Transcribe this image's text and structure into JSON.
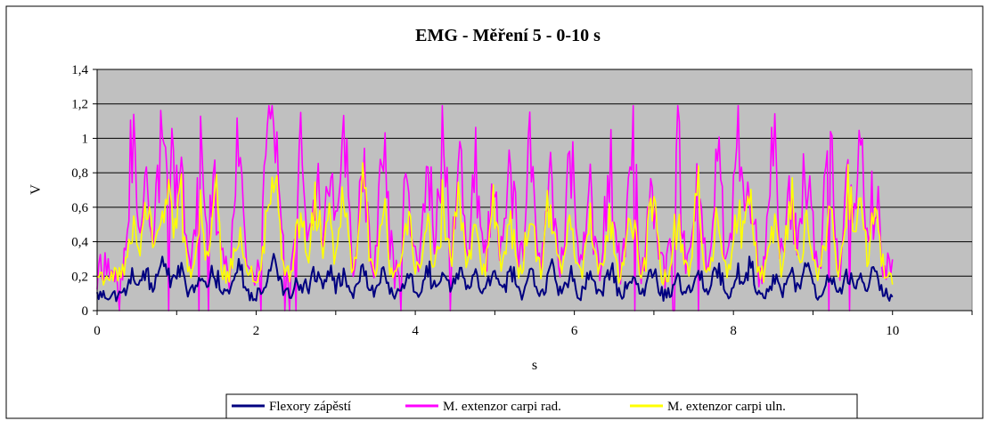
{
  "chart_data": {
    "type": "line",
    "title": "EMG - Měření 5 - 0-10 s",
    "xlabel": "s",
    "ylabel": "V",
    "xlim": [
      0,
      11
    ],
    "ylim": [
      0,
      1.4
    ],
    "x_ticks": [
      "0",
      "2",
      "4",
      "6",
      "8",
      "10"
    ],
    "y_ticks": [
      "0",
      "0,2",
      "0,4",
      "0,6",
      "0,8",
      "1",
      "1,2",
      "1,4"
    ],
    "grid": "horizontal",
    "plot_background": "#c0c0c0",
    "legend_position": "bottom",
    "sampling": {
      "x_start": 0,
      "x_end": 10,
      "step": 0.02
    },
    "burst_times": [
      0.45,
      0.62,
      0.8,
      0.9,
      1.05,
      1.3,
      1.48,
      1.78,
      2.15,
      2.25,
      2.55,
      2.75,
      2.92,
      3.1,
      3.35,
      3.6,
      3.9,
      4.15,
      4.35,
      4.55,
      4.75,
      4.98,
      5.2,
      5.45,
      5.7,
      5.95,
      6.2,
      6.45,
      6.72,
      6.98,
      7.3,
      7.55,
      7.8,
      8.05,
      8.2,
      8.5,
      8.72,
      8.92,
      9.2,
      9.45,
      9.6,
      9.78
    ],
    "series": [
      {
        "name": "Flexory zápěstí",
        "color": "#000080",
        "baseline": 0.09,
        "noise": 0.04,
        "peak": 0.2
      },
      {
        "name": "M. extenzor carpi rad.",
        "color": "#ff00ff",
        "baseline": 0.22,
        "noise": 0.12,
        "peak": 0.95
      },
      {
        "name": "M. extenzor carpi uln.",
        "color": "#ffff00",
        "baseline": 0.2,
        "noise": 0.06,
        "peak": 0.55
      }
    ]
  }
}
